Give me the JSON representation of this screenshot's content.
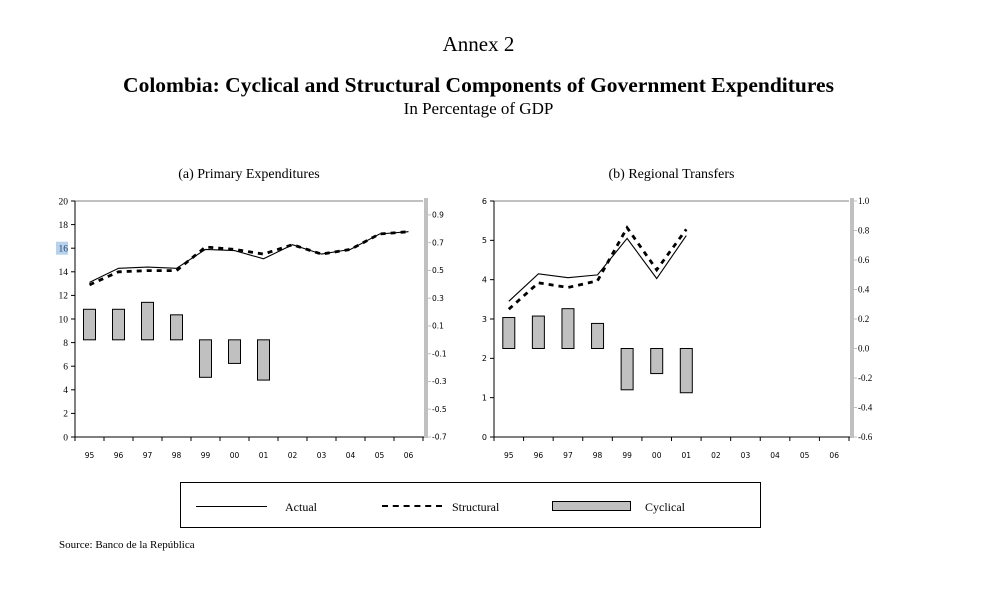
{
  "page": {
    "annex": "Annex 2",
    "title": "Colombia: Cyclical and Structural Components of Government Expenditures",
    "subtitle": "In Percentage of GDP",
    "source": "Source:  Banco de la República"
  },
  "legend": {
    "placement": "bottom",
    "items": [
      {
        "label": "Actual",
        "style": "solid-line"
      },
      {
        "label": "Structural",
        "style": "dashed-line"
      },
      {
        "label": "Cyclical",
        "style": "gray-bar"
      }
    ]
  },
  "colors": {
    "line": "#000000",
    "bar_fill": "#c0c0c0",
    "bar_stroke": "#000000",
    "right_axis": "#c0c0c0",
    "frame_top": "#808080",
    "selected_label_bg": "#b7d2ea",
    "selected_label_text": "#1f3d73"
  },
  "chart_data": [
    {
      "id": "primary-expenditures",
      "type": "line",
      "title": "(a) Primary Expenditures",
      "xlabel": "",
      "ylabel": "",
      "categories": [
        "95",
        "96",
        "97",
        "98",
        "99",
        "00",
        "01",
        "02",
        "03",
        "04",
        "05",
        "06"
      ],
      "ylim": [
        0,
        20
      ],
      "yticks": [
        "0",
        "2",
        "4",
        "6",
        "8",
        "10",
        "12",
        "14",
        "16",
        "18",
        "20"
      ],
      "y2lim": [
        -0.7,
        1.0
      ],
      "y2ticks": [
        "-0.7",
        "-0.5",
        "-0.3",
        "-0.1",
        "0.1",
        "0.3",
        "0.5",
        "0.7",
        "0.9"
      ],
      "selected_tick_label": "16",
      "grid": false,
      "series": [
        {
          "name": "Actual",
          "type": "line",
          "style": "solid",
          "axis": "left",
          "values": [
            13.1,
            14.3,
            14.4,
            14.3,
            15.9,
            15.8,
            15.1,
            16.3,
            15.5,
            15.9,
            17.2,
            17.4
          ]
        },
        {
          "name": "Structural",
          "type": "line",
          "style": "dashed",
          "axis": "left",
          "values": [
            12.9,
            14.0,
            14.1,
            14.1,
            16.1,
            15.9,
            15.5,
            16.3,
            15.5,
            15.9,
            17.2,
            17.4
          ]
        },
        {
          "name": "Cyclical",
          "type": "bar",
          "axis": "right",
          "values": [
            0.22,
            0.22,
            0.27,
            0.18,
            -0.27,
            -0.17,
            -0.29,
            null,
            null,
            null,
            null,
            null
          ]
        }
      ]
    },
    {
      "id": "regional-transfers",
      "type": "line",
      "title": "(b) Regional Transfers",
      "xlabel": "",
      "ylabel": "",
      "categories": [
        "95",
        "96",
        "97",
        "98",
        "99",
        "00",
        "01",
        "02",
        "03",
        "04",
        "05",
        "06"
      ],
      "ylim": [
        0,
        6
      ],
      "yticks": [
        "0",
        "1",
        "2",
        "3",
        "4",
        "5",
        "6"
      ],
      "y2lim": [
        -0.6,
        1.0
      ],
      "y2ticks": [
        "-0.6",
        "-0.4",
        "-0.2",
        "0.0",
        "0.2",
        "0.4",
        "0.6",
        "0.8",
        "1.0"
      ],
      "grid": false,
      "series": [
        {
          "name": "Actual",
          "type": "line",
          "style": "solid",
          "axis": "left",
          "values": [
            3.45,
            4.15,
            4.05,
            4.12,
            5.05,
            4.03,
            5.12,
            null,
            null,
            null,
            null,
            null
          ]
        },
        {
          "name": "Structural",
          "type": "line",
          "style": "dashed",
          "axis": "left",
          "values": [
            3.25,
            3.92,
            3.8,
            3.97,
            5.32,
            4.25,
            5.28,
            null,
            null,
            null,
            null,
            null
          ]
        },
        {
          "name": "Cyclical",
          "type": "bar",
          "axis": "right",
          "values": [
            0.21,
            0.22,
            0.27,
            0.17,
            -0.28,
            -0.17,
            -0.3,
            null,
            null,
            null,
            null,
            null
          ]
        }
      ]
    }
  ]
}
